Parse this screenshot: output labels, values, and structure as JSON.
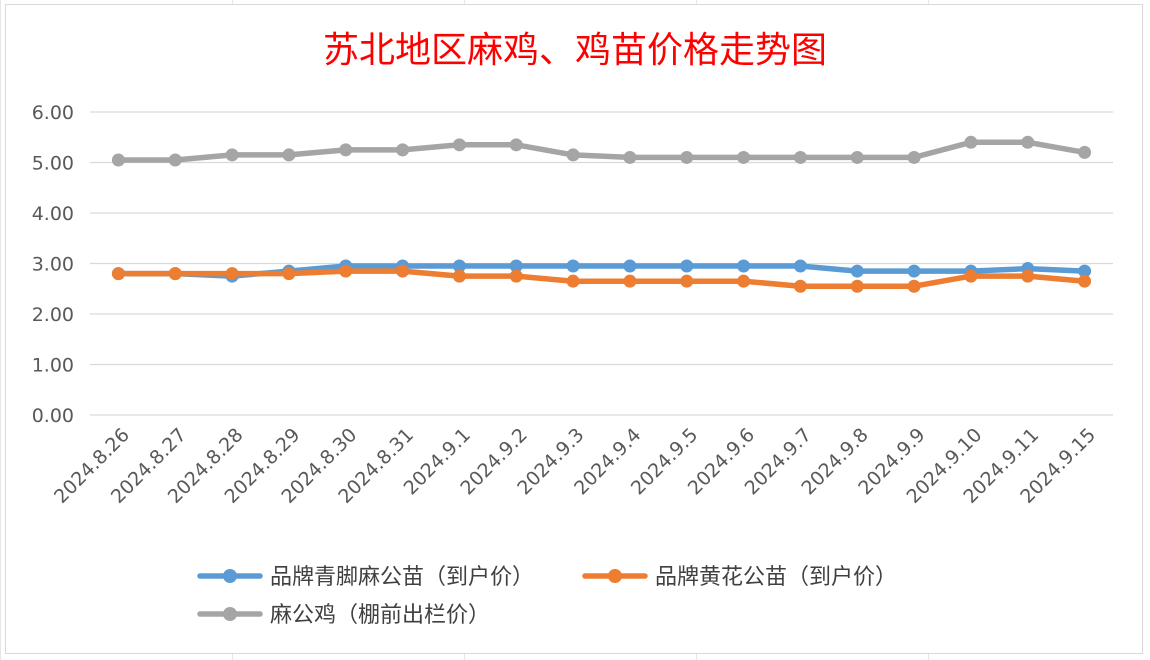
{
  "chart_data": {
    "type": "line",
    "title": "苏北地区麻鸡、鸡苗价格走势图",
    "title_color": "#ff0000",
    "xlabel": "",
    "ylabel": "",
    "ylim": [
      0,
      6
    ],
    "y_ticks": [
      "0.00",
      "1.00",
      "2.00",
      "3.00",
      "4.00",
      "5.00",
      "6.00"
    ],
    "grid": true,
    "legend_position": "bottom",
    "categories": [
      "2024.8.26",
      "2024.8.27",
      "2024.8.28",
      "2024.8.29",
      "2024.8.30",
      "2024.8.31",
      "2024.9.1",
      "2024.9.2",
      "2024.9.3",
      "2024.9.4",
      "2024.9.5",
      "2024.9.6",
      "2024.9.7",
      "2024.9.8",
      "2024.9.9",
      "2024.9.10",
      "2024.9.11",
      "2024.9.15"
    ],
    "series": [
      {
        "name": "品牌青脚麻公苗（到户价）",
        "color": "#5b9bd5",
        "values": [
          2.8,
          2.8,
          2.75,
          2.85,
          2.95,
          2.95,
          2.95,
          2.95,
          2.95,
          2.95,
          2.95,
          2.95,
          2.95,
          2.85,
          2.85,
          2.85,
          2.9,
          2.85
        ]
      },
      {
        "name": "品牌黄花公苗（到户价）",
        "color": "#ed7d31",
        "values": [
          2.8,
          2.8,
          2.8,
          2.8,
          2.85,
          2.85,
          2.75,
          2.75,
          2.65,
          2.65,
          2.65,
          2.65,
          2.55,
          2.55,
          2.55,
          2.75,
          2.75,
          2.65
        ]
      },
      {
        "name": "麻公鸡（棚前出栏价）",
        "color": "#a5a5a5",
        "values": [
          5.05,
          5.05,
          5.15,
          5.15,
          5.25,
          5.25,
          5.35,
          5.35,
          5.15,
          5.1,
          5.1,
          5.1,
          5.1,
          5.1,
          5.1,
          5.4,
          5.4,
          5.2
        ]
      }
    ]
  }
}
